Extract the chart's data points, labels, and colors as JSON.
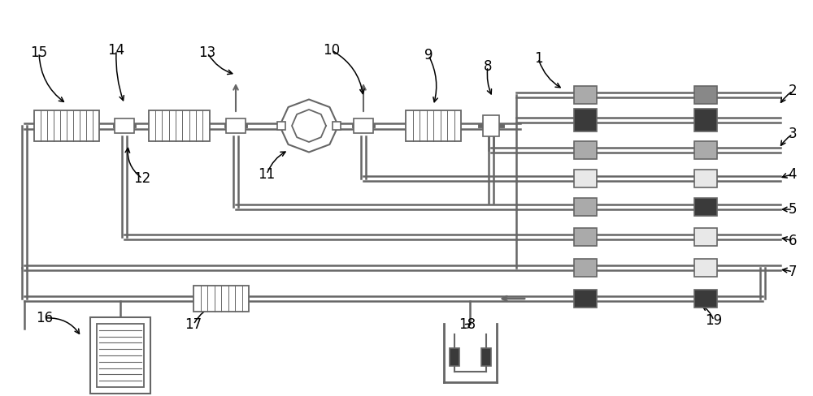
{
  "bg_color": "#ffffff",
  "lc": "#666666",
  "dc": "#3a3a3a",
  "mc": "#888888",
  "lbc": "#aaaaaa",
  "wc": "#e8e8e8",
  "figsize": [
    10.0,
    4.88
  ],
  "dpi": 100
}
